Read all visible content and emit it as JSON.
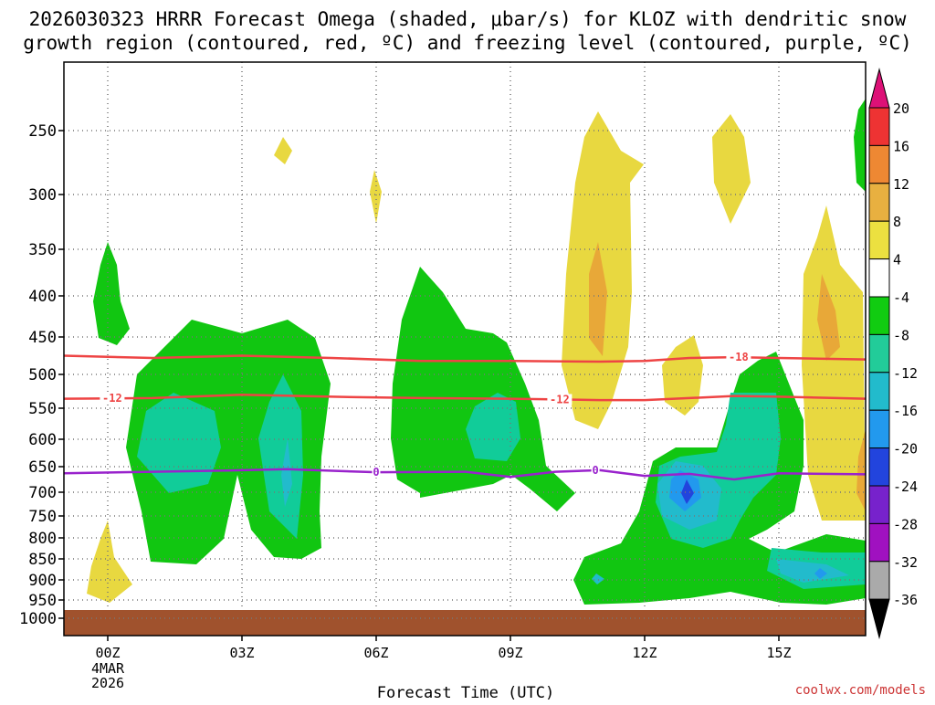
{
  "title_line1": "2026030323 HRRR Forecast Omega (shaded, μbar/s) for KLOZ with dendritic snow",
  "title_line2": "growth region (contoured, red, ºC) and freezing level (contoured, purple, ºC)",
  "credit": "coolwx.com/models",
  "chart_data": {
    "type": "contour",
    "xlabel": "Forecast Time (UTC)",
    "x_ticks": [
      {
        "hour": 0,
        "label": "00Z"
      },
      {
        "hour": 3,
        "label": "03Z"
      },
      {
        "hour": 6,
        "label": "06Z"
      },
      {
        "hour": 9,
        "label": "09Z"
      },
      {
        "hour": 12,
        "label": "12Z"
      },
      {
        "hour": 15,
        "label": "15Z"
      }
    ],
    "x_date_label": [
      "4MAR",
      "2026"
    ],
    "xlim": [
      -1,
      17
    ],
    "y_ticks": [
      250,
      300,
      350,
      400,
      450,
      500,
      550,
      600,
      650,
      700,
      750,
      800,
      850,
      900,
      950,
      1000
    ],
    "ylim_pressure": [
      200,
      1000
    ],
    "surface_pressure": 975,
    "colorbar": {
      "levels": [
        20,
        16,
        12,
        8,
        4,
        -4,
        -8,
        -12,
        -16,
        -20,
        -24,
        -28,
        -32,
        -36
      ],
      "colors": [
        "#e8c84b",
        "#f0e068",
        "#ffffff",
        "#22c822",
        "#22cc99",
        "#22c8d8",
        "#2299ee",
        "#2244dd",
        "#6622cc",
        "#9911bb",
        "#aaaaaa"
      ],
      "bands": [
        {
          "color": "#ee3333"
        },
        {
          "color": "#ee8833"
        },
        {
          "color": "#e8b040"
        },
        {
          "color": "#ece040"
        },
        {
          "color": "#ffffff"
        },
        {
          "color": "#11cc11"
        },
        {
          "color": "#22cc99"
        },
        {
          "color": "#22bbcc"
        },
        {
          "color": "#2299ee"
        },
        {
          "color": "#2244dd"
        },
        {
          "color": "#7722cc"
        },
        {
          "color": "#a011c0"
        },
        {
          "color": "#aaaaaa"
        }
      ]
    },
    "contours": [
      {
        "label": "-18",
        "color": "#ee4444",
        "points": [
          [
            -1,
            475
          ],
          [
            1,
            478
          ],
          [
            3,
            475
          ],
          [
            5,
            478
          ],
          [
            7,
            482
          ],
          [
            9,
            482
          ],
          [
            11,
            483
          ],
          [
            12,
            482
          ],
          [
            13,
            478
          ],
          [
            14,
            477
          ],
          [
            15,
            478
          ],
          [
            17,
            480
          ]
        ],
        "label_hour": 14.1
      },
      {
        "label": "-12",
        "color": "#ee4444",
        "points": [
          [
            -1,
            536
          ],
          [
            1,
            535
          ],
          [
            3,
            530
          ],
          [
            5,
            533
          ],
          [
            7,
            535
          ],
          [
            9,
            536
          ],
          [
            11,
            538
          ],
          [
            12,
            538
          ],
          [
            13,
            535
          ],
          [
            14,
            532
          ],
          [
            15,
            533
          ],
          [
            17,
            536
          ]
        ],
        "label_hour": [
          0.1,
          10.1
        ]
      },
      {
        "label": "0",
        "color": "#9922cc",
        "points": [
          [
            -1,
            663
          ],
          [
            1,
            660
          ],
          [
            3,
            657
          ],
          [
            4,
            655
          ],
          [
            6,
            661
          ],
          [
            8,
            660
          ],
          [
            9,
            670
          ],
          [
            10,
            660
          ],
          [
            11,
            657
          ],
          [
            12,
            668
          ],
          [
            13,
            664
          ],
          [
            14,
            675
          ],
          [
            15,
            663
          ],
          [
            17,
            665
          ]
        ],
        "label_hour": [
          6,
          10.9
        ]
      }
    ]
  }
}
